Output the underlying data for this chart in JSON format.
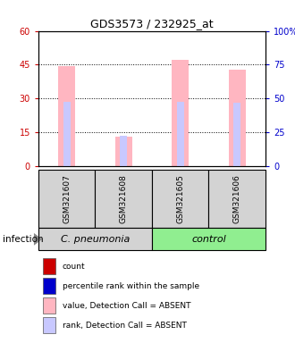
{
  "title": "GDS3573 / 232925_at",
  "samples": [
    "GSM321607",
    "GSM321608",
    "GSM321605",
    "GSM321606"
  ],
  "ylim_left": [
    0,
    60
  ],
  "ylim_right": [
    0,
    100
  ],
  "yticks_left": [
    0,
    15,
    30,
    45,
    60
  ],
  "yticks_right": [
    0,
    25,
    50,
    75,
    100
  ],
  "left_color": "#cc0000",
  "right_color": "#0000cc",
  "bar_color_absent": "#FFB6C1",
  "rank_color_absent": "#c8c8ff",
  "value_bars": [
    44.5,
    13.0,
    47.0,
    43.0
  ],
  "rank_bars": [
    28.5,
    13.5,
    28.5,
    28.0
  ],
  "detection_call": [
    "ABSENT",
    "ABSENT",
    "ABSENT",
    "ABSENT"
  ],
  "legend_items": [
    {
      "color": "#cc0000",
      "label": "count"
    },
    {
      "color": "#0000cc",
      "label": "percentile rank within the sample"
    },
    {
      "color": "#FFB6C1",
      "label": "value, Detection Call = ABSENT"
    },
    {
      "color": "#c8c8ff",
      "label": "rank, Detection Call = ABSENT"
    }
  ],
  "infection_label": "infection",
  "bar_width": 0.3,
  "rank_bar_width": 0.13,
  "background_color": "#ffffff",
  "group_spans": [
    {
      "start": 0,
      "end": 2,
      "label": "C. pneumonia",
      "color": "#90EE90"
    },
    {
      "start": 2,
      "end": 4,
      "label": "control",
      "color": "#90EE90"
    }
  ],
  "sample_box_color": "#d3d3d3",
  "group_box_color_pneumonia": "#d3d3d3",
  "group_box_color_control": "#90EE90"
}
